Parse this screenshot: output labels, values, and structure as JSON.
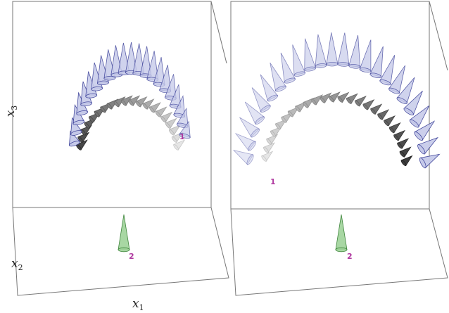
{
  "axes": {
    "x3": {
      "base": "x",
      "sub": "3"
    },
    "x2": {
      "base": "x",
      "sub": "2"
    },
    "x1": {
      "base": "x",
      "sub": "1"
    }
  },
  "panels": [
    {
      "label_1": "1",
      "label_2": "2"
    },
    {
      "label_1": "1",
      "label_2": "2"
    }
  ]
}
